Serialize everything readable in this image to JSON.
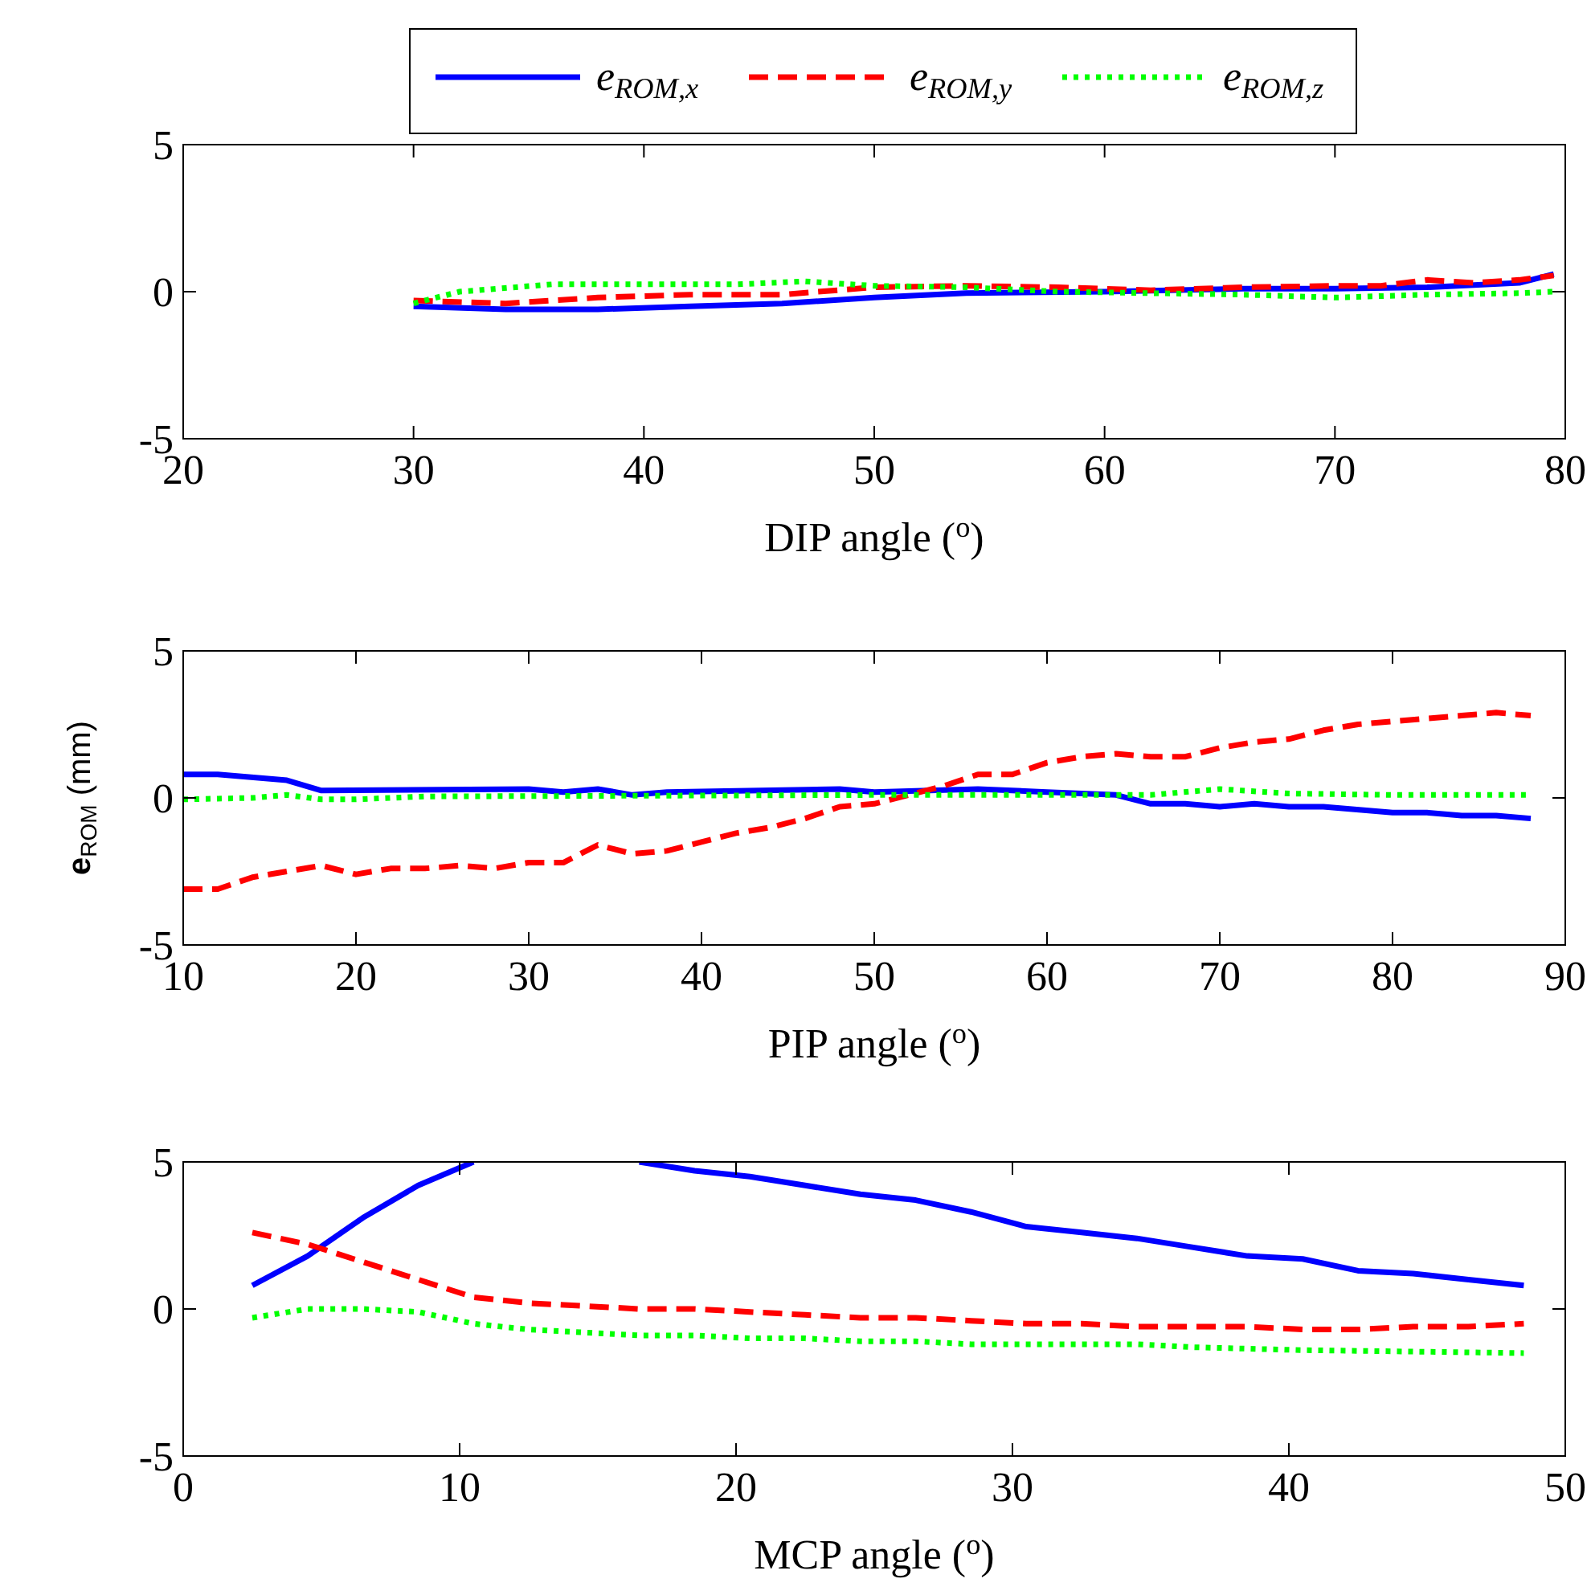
{
  "chart_data": [
    {
      "type": "line",
      "xlabel": "DIP angle ($^{o}$)",
      "xlim": [
        20,
        80
      ],
      "xticks": [
        20,
        30,
        40,
        50,
        60,
        70,
        80
      ],
      "ylim": [
        -5,
        5
      ],
      "yticks": [
        -5,
        0,
        5
      ],
      "legend": "top",
      "series": [
        {
          "name": "e$_{ROM,x}$",
          "color": "#0000ff",
          "line_style": "solid",
          "x": [
            30,
            34,
            38,
            42,
            46,
            50,
            54,
            60,
            66,
            70,
            74,
            78,
            79.5
          ],
          "values": [
            -0.5,
            -0.6,
            -0.6,
            -0.5,
            -0.4,
            -0.2,
            -0.05,
            0,
            0.1,
            0.1,
            0.15,
            0.3,
            0.6
          ]
        },
        {
          "name": "e$_{ROM,y}$",
          "color": "#ff0000",
          "line_style": "dashed",
          "x": [
            30,
            34,
            38,
            42,
            46,
            50,
            54,
            58,
            62,
            66,
            70,
            72,
            74,
            76,
            78,
            79.5
          ],
          "values": [
            -0.3,
            -0.4,
            -0.2,
            -0.1,
            -0.1,
            0.15,
            0.2,
            0.15,
            0.05,
            0.15,
            0.2,
            0.2,
            0.4,
            0.3,
            0.4,
            0.55
          ]
        },
        {
          "name": "e$_{ROM,z}$",
          "color": "#00ff00",
          "line_style": "dotted",
          "x": [
            30,
            32,
            36,
            40,
            44,
            47,
            50,
            54,
            58,
            62,
            66,
            70,
            74,
            78,
            79.5
          ],
          "values": [
            -0.4,
            0,
            0.25,
            0.25,
            0.25,
            0.35,
            0.2,
            0.15,
            0,
            -0.05,
            -0.1,
            -0.2,
            -0.1,
            -0.05,
            0
          ]
        }
      ]
    },
    {
      "type": "line",
      "xlabel": "PIP angle ($^{o}$)",
      "ylabel": "e$_{ROM}$ (mm)",
      "xlim": [
        10,
        90
      ],
      "xticks": [
        10,
        20,
        30,
        40,
        50,
        60,
        70,
        80,
        90
      ],
      "ylim": [
        -5,
        5
      ],
      "yticks": [
        -5,
        0,
        5
      ],
      "series": [
        {
          "color": "#0000ff",
          "line_style": "solid",
          "x": [
            10,
            12,
            16,
            18,
            30,
            32,
            34,
            36,
            38,
            48,
            50,
            56,
            60,
            64,
            66,
            68,
            70,
            72,
            74,
            76,
            80,
            82,
            84,
            86,
            88
          ],
          "values": [
            0.8,
            0.8,
            0.6,
            0.25,
            0.3,
            0.2,
            0.3,
            0.1,
            0.2,
            0.3,
            0.2,
            0.3,
            0.2,
            0.1,
            -0.2,
            -0.2,
            -0.3,
            -0.2,
            -0.3,
            -0.3,
            -0.5,
            -0.5,
            -0.6,
            -0.6,
            -0.7
          ]
        },
        {
          "color": "#ff0000",
          "line_style": "dashed",
          "x": [
            10,
            12,
            14,
            16,
            18,
            20,
            22,
            24,
            26,
            28,
            30,
            32,
            34,
            36,
            38,
            40,
            42,
            44,
            46,
            48,
            50,
            52,
            54,
            56,
            58,
            60,
            62,
            64,
            66,
            68,
            70,
            72,
            74,
            76,
            78,
            80,
            82,
            84,
            86,
            88
          ],
          "values": [
            -3.1,
            -3.1,
            -2.7,
            -2.5,
            -2.3,
            -2.6,
            -2.4,
            -2.4,
            -2.3,
            -2.4,
            -2.2,
            -2.2,
            -1.6,
            -1.9,
            -1.8,
            -1.5,
            -1.2,
            -1.0,
            -0.7,
            -0.3,
            -0.2,
            0.1,
            0.4,
            0.8,
            0.8,
            1.2,
            1.4,
            1.5,
            1.4,
            1.4,
            1.7,
            1.9,
            2.0,
            2.3,
            2.5,
            2.6,
            2.7,
            2.8,
            2.9,
            2.8
          ]
        },
        {
          "color": "#00ff00",
          "line_style": "dotted",
          "x": [
            10,
            14,
            16,
            18,
            20,
            24,
            50,
            60,
            66,
            70,
            74,
            80,
            88
          ],
          "values": [
            -0.05,
            0,
            0.1,
            -0.05,
            -0.05,
            0.05,
            0.1,
            0.1,
            0.1,
            0.3,
            0.15,
            0.1,
            0.1
          ]
        }
      ]
    },
    {
      "type": "line",
      "xlabel": "MCP angle ($^{o}$)",
      "xlim": [
        0,
        50
      ],
      "xticks": [
        0,
        10,
        20,
        30,
        40,
        50
      ],
      "ylim": [
        -5,
        5
      ],
      "yticks": [
        -5,
        0,
        5
      ],
      "series": [
        {
          "color": "#0000ff",
          "line_style": "solid",
          "x": [
            2.5,
            4.5,
            6.5,
            8.5,
            10.5,
            13.5,
            16.5,
            18.5,
            20.5,
            22.5,
            24.5,
            26.5,
            28.5,
            30.5,
            32.5,
            34.5,
            36.5,
            38.5,
            40.5,
            42.5,
            44.5,
            46.5,
            48.5
          ],
          "values": [
            0.8,
            1.8,
            3.1,
            4.2,
            5.0,
            null,
            5.0,
            4.7,
            4.5,
            4.2,
            3.9,
            3.7,
            3.3,
            2.8,
            2.6,
            2.4,
            2.1,
            1.8,
            1.7,
            1.3,
            1.2,
            1.0,
            0.8
          ]
        },
        {
          "color": "#ff0000",
          "line_style": "dashed",
          "x": [
            2.5,
            4.5,
            6.5,
            8.5,
            10.5,
            12.5,
            14.5,
            16.5,
            18.5,
            20.5,
            22.5,
            24.5,
            26.5,
            28.5,
            30.5,
            32.5,
            34.5,
            36.5,
            38.5,
            40.5,
            42.5,
            44.5,
            46.5,
            48.5
          ],
          "values": [
            2.6,
            2.2,
            1.6,
            1.0,
            0.4,
            0.2,
            0.1,
            0,
            0,
            -0.1,
            -0.2,
            -0.3,
            -0.3,
            -0.4,
            -0.5,
            -0.5,
            -0.6,
            -0.6,
            -0.6,
            -0.7,
            -0.7,
            -0.6,
            -0.6,
            -0.5
          ]
        },
        {
          "color": "#00ff00",
          "line_style": "dotted",
          "x": [
            2.5,
            4.5,
            6.5,
            8.5,
            10.5,
            12.5,
            14.5,
            16.5,
            18.5,
            20.5,
            22.5,
            24.5,
            26.5,
            28.5,
            34.5,
            36.5,
            40.5,
            48.5
          ],
          "values": [
            -0.3,
            0,
            0,
            -0.1,
            -0.5,
            -0.7,
            -0.8,
            -0.9,
            -0.9,
            -1.0,
            -1.0,
            -1.1,
            -1.1,
            -1.2,
            -1.2,
            -1.3,
            -1.4,
            -1.5
          ]
        }
      ]
    }
  ]
}
